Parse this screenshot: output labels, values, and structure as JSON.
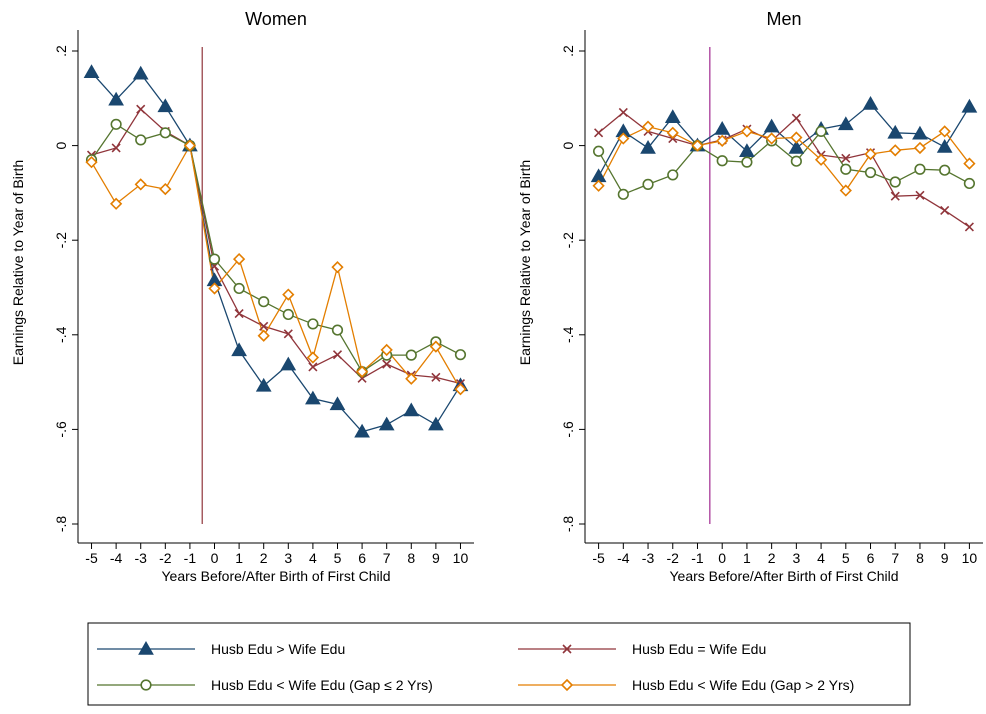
{
  "chart_data": [
    {
      "type": "line",
      "title": "Women",
      "xlabel": "Years Before/After Birth of First Child",
      "ylabel": "Earnings Relative to Year of Birth",
      "x": [
        -5,
        -4,
        -3,
        -2,
        -1,
        0,
        1,
        2,
        3,
        4,
        5,
        6,
        7,
        8,
        9,
        10
      ],
      "xlim": [
        -5.55,
        10.55
      ],
      "ylim": [
        -0.8,
        0.2
      ],
      "yticks": [
        0.2,
        0,
        -0.2,
        -0.4,
        -0.6,
        -0.8
      ],
      "ytick_labels": [
        ".2",
        "0",
        "-.2",
        "-.4",
        "-.6",
        "-.8"
      ],
      "vline_x": -0.5,
      "series": [
        {
          "name": "Husb Edu > Wife Edu",
          "values": [
            0.155,
            0.097,
            0.152,
            0.083,
            0.0,
            -0.285,
            -0.433,
            -0.508,
            -0.463,
            -0.535,
            -0.547,
            -0.605,
            -0.59,
            -0.56,
            -0.59,
            -0.507
          ]
        },
        {
          "name": "Husb Edu = Wife Edu",
          "values": [
            -0.02,
            -0.005,
            0.077,
            0.03,
            0.0,
            -0.255,
            -0.355,
            -0.382,
            -0.398,
            -0.468,
            -0.442,
            -0.492,
            -0.462,
            -0.485,
            -0.49,
            -0.503
          ]
        },
        {
          "name": "Husb Edu < Wife Edu (Gap ≤ 2 Yrs)",
          "values": [
            -0.03,
            0.045,
            0.012,
            0.027,
            0.0,
            -0.24,
            -0.302,
            -0.33,
            -0.357,
            -0.377,
            -0.39,
            -0.478,
            -0.443,
            -0.443,
            -0.415,
            -0.442
          ]
        },
        {
          "name": "Husb Edu < Wife Edu (Gap > 2 Yrs)",
          "values": [
            -0.035,
            -0.123,
            -0.082,
            -0.092,
            0.0,
            -0.302,
            -0.24,
            -0.402,
            -0.315,
            -0.448,
            -0.257,
            -0.478,
            -0.432,
            -0.493,
            -0.425,
            -0.515
          ]
        }
      ]
    },
    {
      "type": "line",
      "title": "Men",
      "xlabel": "Years Before/After Birth of First Child",
      "ylabel": "Earnings Relative to Year of Birth",
      "x": [
        -5,
        -4,
        -3,
        -2,
        -1,
        0,
        1,
        2,
        3,
        4,
        5,
        6,
        7,
        8,
        9,
        10
      ],
      "xlim": [
        -5.55,
        10.55
      ],
      "ylim": [
        -0.8,
        0.2
      ],
      "yticks": [
        0.2,
        0,
        -0.2,
        -0.4,
        -0.6,
        -0.8
      ],
      "ytick_labels": [
        ".2",
        "0",
        "-.2",
        "-.4",
        "-.6",
        "-.8"
      ],
      "vline_x": -0.5,
      "series": [
        {
          "name": "Husb Edu > Wife Edu",
          "values": [
            -0.065,
            0.03,
            -0.005,
            0.06,
            0.0,
            0.035,
            -0.012,
            0.04,
            -0.005,
            0.035,
            0.045,
            0.088,
            0.027,
            0.025,
            -0.003,
            0.082
          ]
        },
        {
          "name": "Husb Edu = Wife Edu",
          "values": [
            0.027,
            0.07,
            0.03,
            0.015,
            0.0,
            0.012,
            0.035,
            0.01,
            0.058,
            -0.02,
            -0.027,
            -0.015,
            -0.107,
            -0.105,
            -0.137,
            -0.172
          ]
        },
        {
          "name": "Husb Edu < Wife Edu (Gap ≤ 2 Yrs)",
          "values": [
            -0.012,
            -0.103,
            -0.082,
            -0.062,
            0.0,
            -0.032,
            -0.035,
            0.01,
            -0.033,
            0.03,
            -0.05,
            -0.057,
            -0.077,
            -0.05,
            -0.052,
            -0.08
          ]
        },
        {
          "name": "Husb Edu < Wife Edu (Gap > 2 Yrs)",
          "values": [
            -0.085,
            0.015,
            0.04,
            0.027,
            0.0,
            0.01,
            0.03,
            0.015,
            0.017,
            -0.03,
            -0.095,
            -0.018,
            -0.01,
            -0.005,
            0.03,
            -0.038
          ]
        }
      ]
    }
  ],
  "colors": {
    "series": [
      "#1a476f",
      "#90353b",
      "#55752f",
      "#e37e00"
    ],
    "vline_women": "#90353b",
    "vline_men": "#a0288f"
  },
  "markers": [
    "triangle",
    "x",
    "circle",
    "diamond"
  ],
  "legend": {
    "position": "bottom",
    "items": [
      "Husb Edu > Wife Edu",
      "Husb Edu = Wife Edu",
      "Husb Edu < Wife Edu (Gap ≤ 2 Yrs)",
      "Husb Edu < Wife Edu (Gap > 2 Yrs)"
    ]
  }
}
